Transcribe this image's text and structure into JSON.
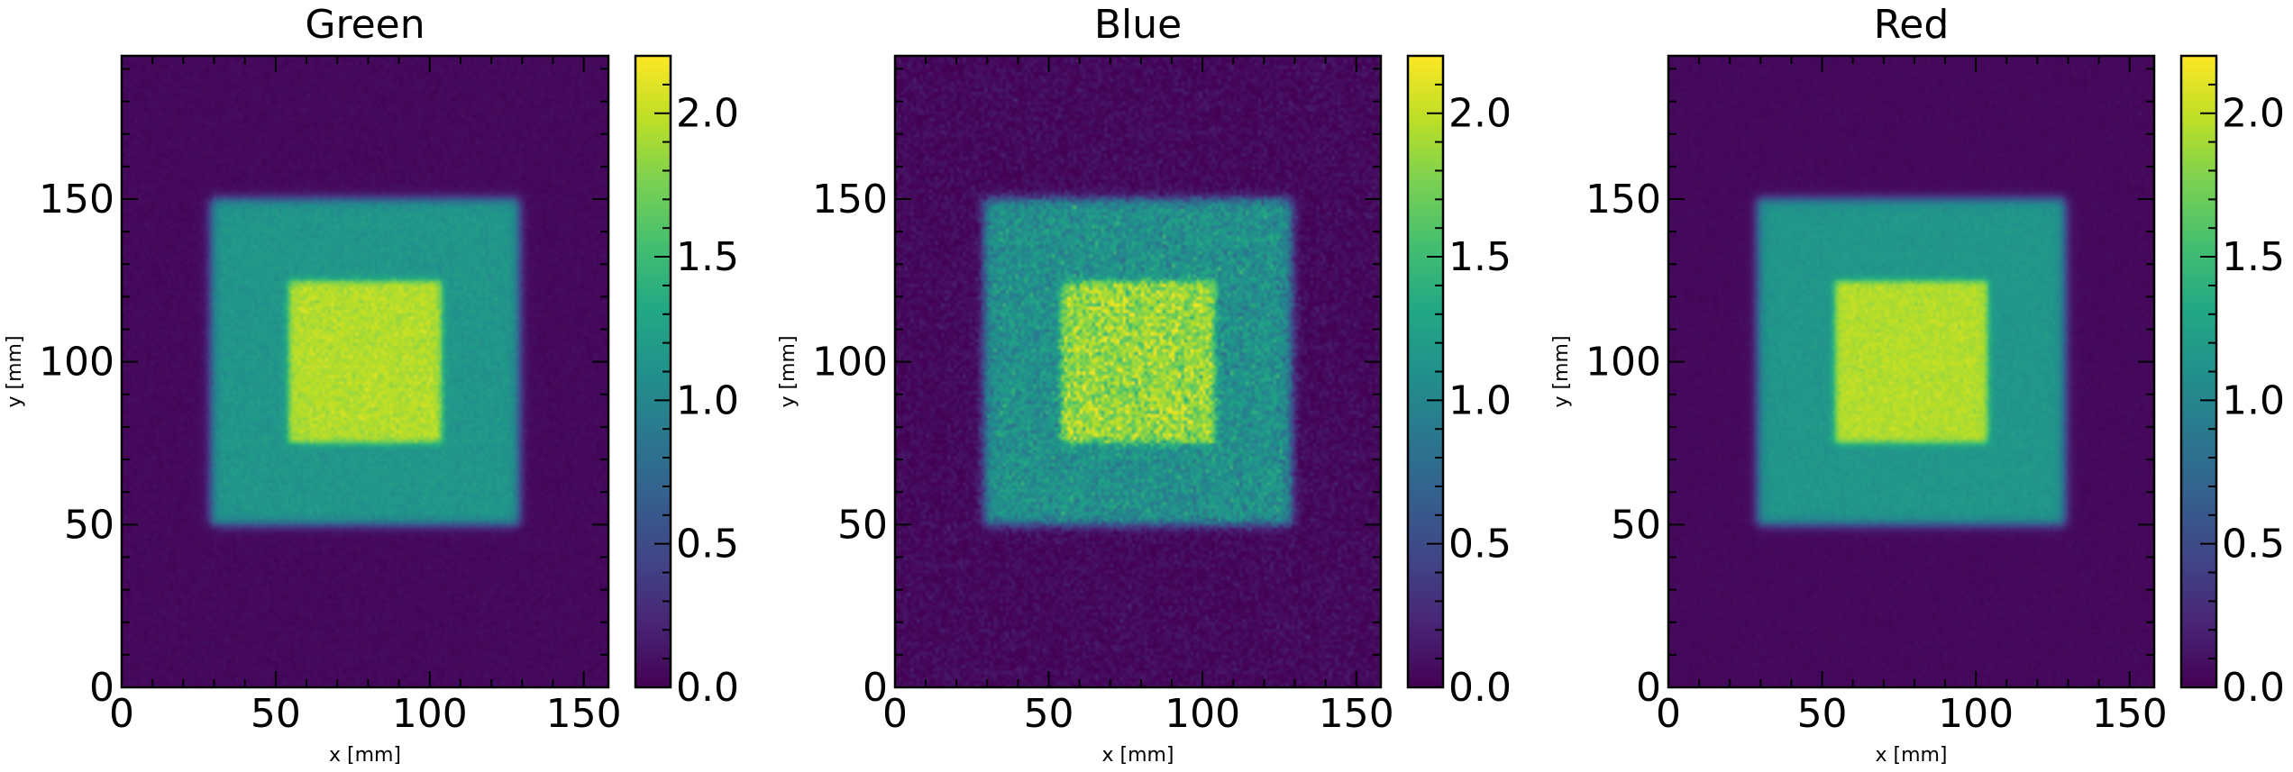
{
  "chart_data": [
    {
      "type": "heatmap",
      "title": "Green",
      "xlabel": "x [mm]",
      "ylabel": "y [mm]",
      "xlim": [
        0,
        158
      ],
      "ylim": [
        0,
        194
      ],
      "xticks": [
        "0",
        "50",
        "100",
        "150"
      ],
      "yticks": [
        "0",
        "50",
        "100",
        "150"
      ],
      "colorbar": {
        "min": 0.0,
        "max": 2.2,
        "ticks": [
          "0.0",
          "0.5",
          "1.0",
          "1.5",
          "2.0"
        ],
        "colormap": "viridis"
      },
      "regions": [
        {
          "label": "background",
          "value": 0.05
        },
        {
          "label": "outer square",
          "x": [
            29,
            129
          ],
          "y": [
            50,
            150
          ],
          "value": 1.15
        },
        {
          "label": "inner square",
          "x": [
            54,
            104
          ],
          "y": [
            75,
            125
          ],
          "value": 1.95
        }
      ],
      "noise": 0.04
    },
    {
      "type": "heatmap",
      "title": "Blue",
      "xlabel": "x [mm]",
      "ylabel": "y [mm]",
      "xlim": [
        0,
        158
      ],
      "ylim": [
        0,
        194
      ],
      "xticks": [
        "0",
        "50",
        "100",
        "150"
      ],
      "yticks": [
        "0",
        "50",
        "100",
        "150"
      ],
      "colorbar": {
        "min": 0.0,
        "max": 2.2,
        "ticks": [
          "0.0",
          "0.5",
          "1.0",
          "1.5",
          "2.0"
        ],
        "colormap": "viridis"
      },
      "regions": [
        {
          "label": "background",
          "value": 0.05
        },
        {
          "label": "outer square",
          "x": [
            29,
            129
          ],
          "y": [
            50,
            150
          ],
          "value": 1.1
        },
        {
          "label": "inner square",
          "x": [
            54,
            104
          ],
          "y": [
            75,
            125
          ],
          "value": 1.85
        }
      ],
      "noise": 0.14
    },
    {
      "type": "heatmap",
      "title": "Red",
      "xlabel": "x [mm]",
      "ylabel": "y [mm]",
      "xlim": [
        0,
        158
      ],
      "ylim": [
        0,
        194
      ],
      "xticks": [
        "0",
        "50",
        "100",
        "150"
      ],
      "yticks": [
        "0",
        "50",
        "100",
        "150"
      ],
      "colorbar": {
        "min": 0.0,
        "max": 2.2,
        "ticks": [
          "0.0",
          "0.5",
          "1.0",
          "1.5",
          "2.0"
        ],
        "colormap": "viridis"
      },
      "regions": [
        {
          "label": "background",
          "value": 0.05
        },
        {
          "label": "outer square",
          "x": [
            29,
            129
          ],
          "y": [
            50,
            150
          ],
          "value": 1.15
        },
        {
          "label": "inner square",
          "x": [
            54,
            104
          ],
          "y": [
            75,
            125
          ],
          "value": 1.95
        }
      ],
      "noise": 0.03
    }
  ]
}
